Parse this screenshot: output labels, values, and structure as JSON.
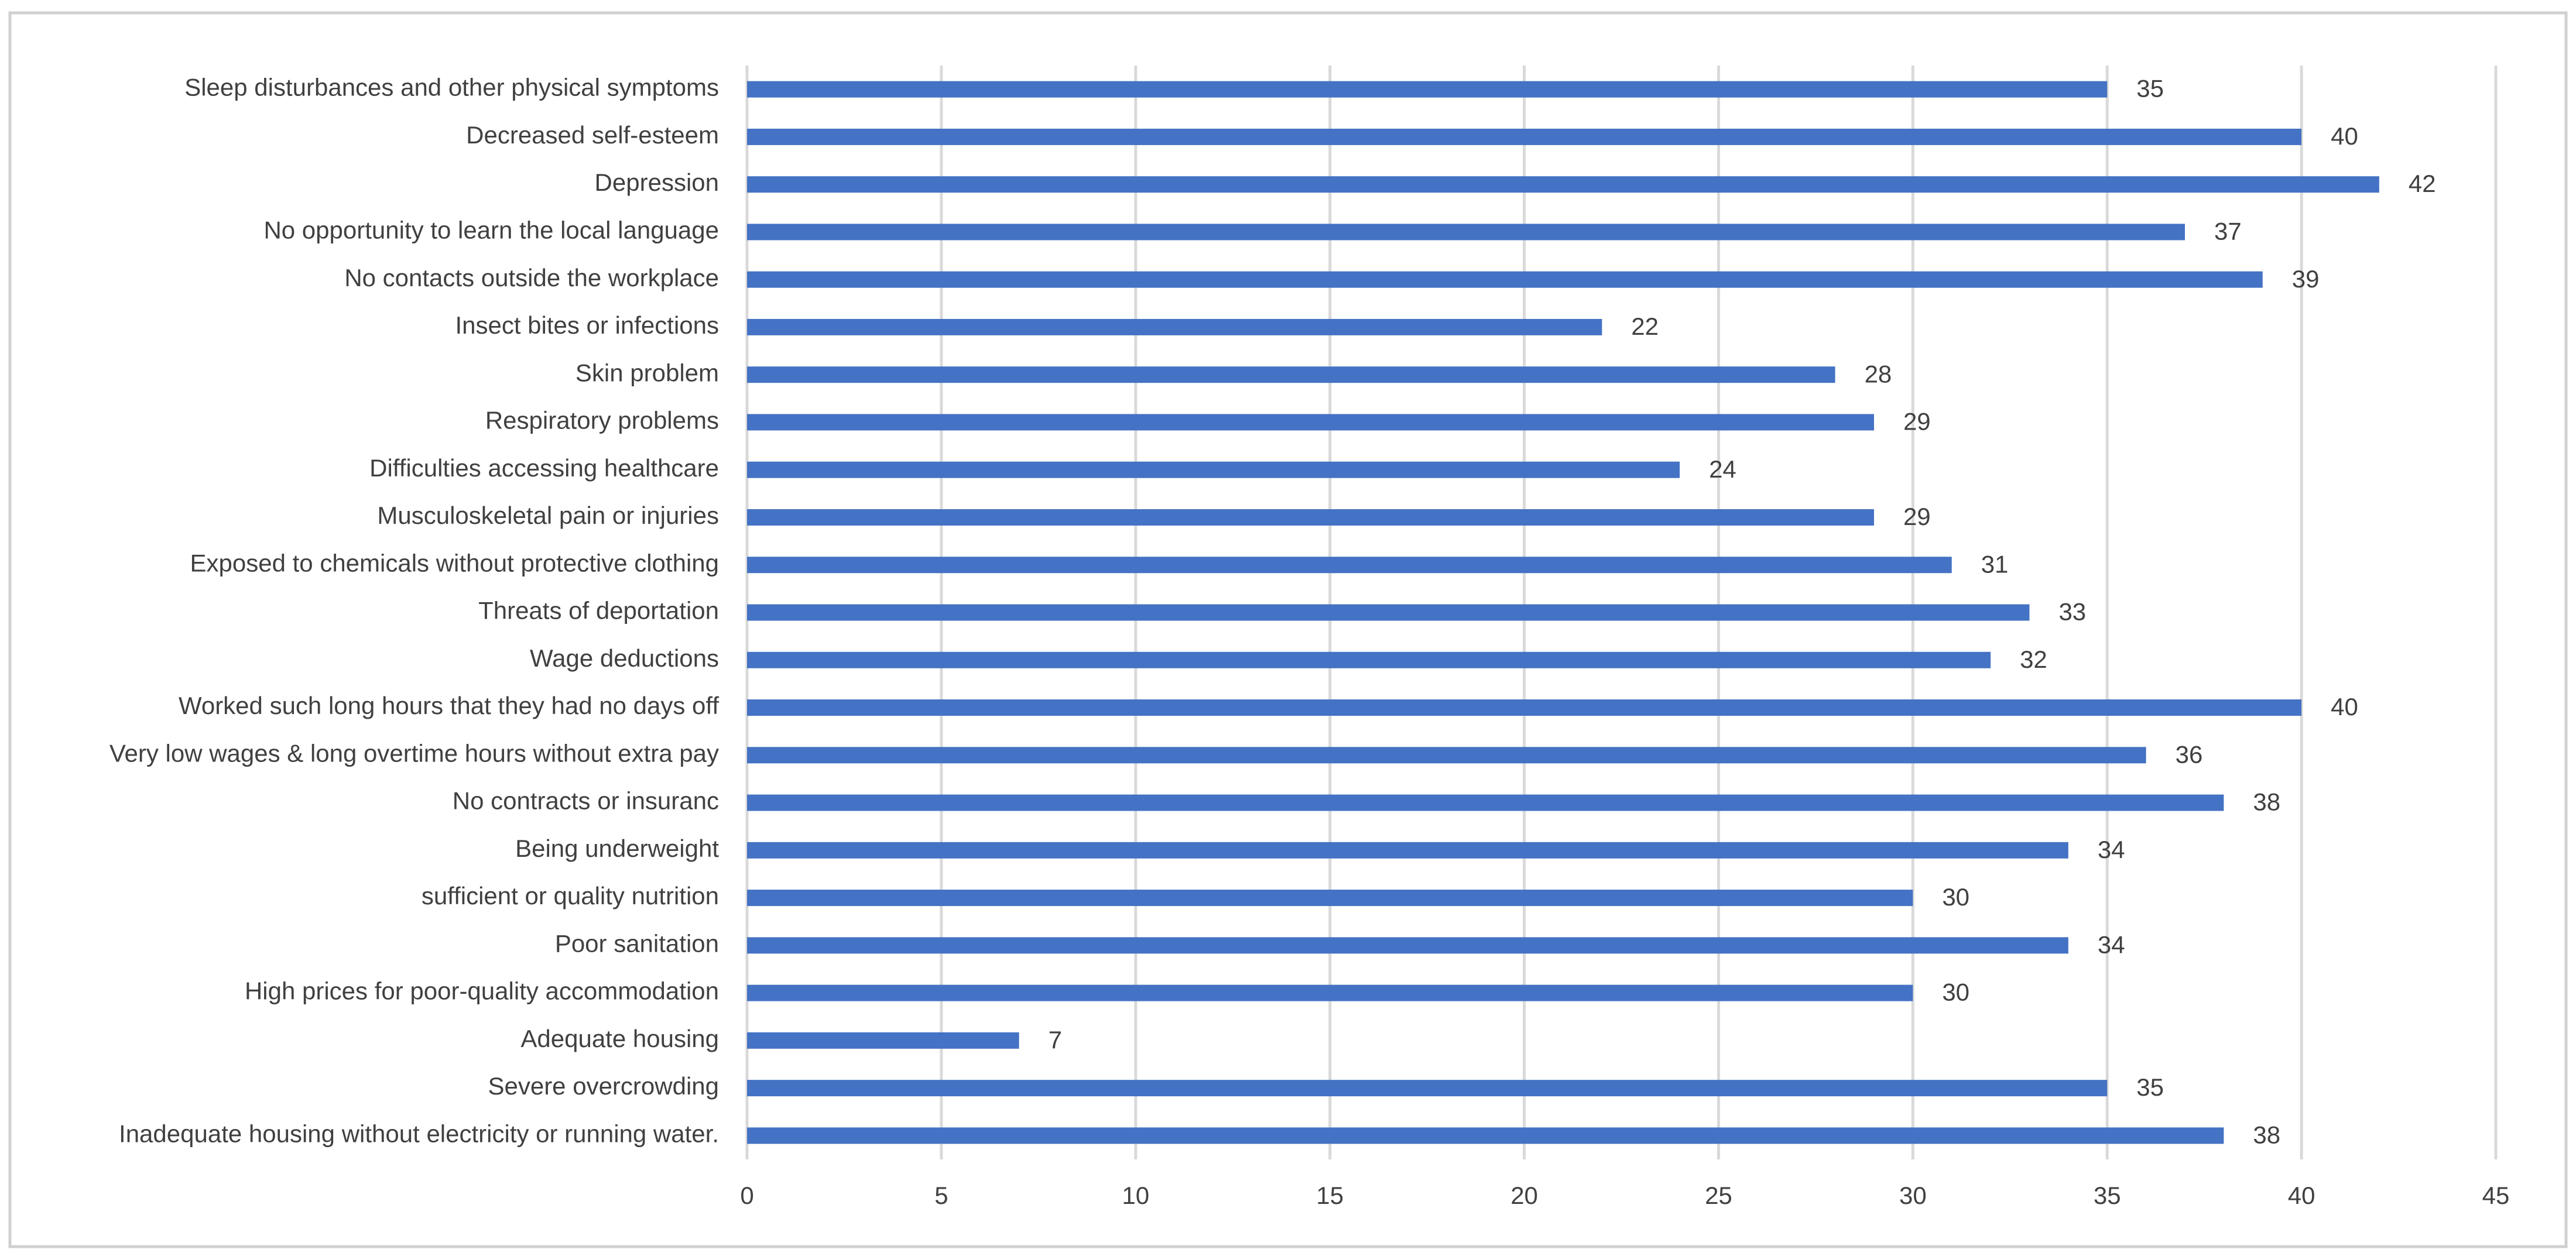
{
  "chart_data": {
    "type": "bar",
    "orientation": "horizontal",
    "categories": [
      "Sleep disturbances and other physical symptoms",
      "Decreased self-esteem",
      "Depression",
      "No opportunity to learn the local language",
      "No contacts outside the workplace",
      "Insect bites or infections",
      "Skin problem",
      "Respiratory problems",
      "Difficulties accessing healthcare",
      "Musculoskeletal pain or injuries",
      "Exposed to chemicals without protective clothing",
      "Threats of deportation",
      "Wage deductions",
      "Worked such long hours that they had no days off",
      "Very low wages & long overtime hours without extra pay",
      "No contracts or insuranc",
      "Being underweight",
      "sufficient or quality nutrition",
      "Poor sanitation",
      "High prices for poor-quality accommodation",
      "Adequate housing",
      "Severe overcrowding",
      "Inadequate housing without electricity or running water."
    ],
    "values": [
      35,
      40,
      42,
      37,
      39,
      22,
      28,
      29,
      24,
      29,
      31,
      33,
      32,
      40,
      36,
      38,
      34,
      30,
      34,
      30,
      7,
      35,
      38
    ],
    "color": "#4472c4",
    "xlim": [
      0,
      45
    ],
    "xticks": [
      0,
      5,
      10,
      15,
      20,
      25,
      30,
      35,
      40,
      45
    ],
    "grid": true
  }
}
